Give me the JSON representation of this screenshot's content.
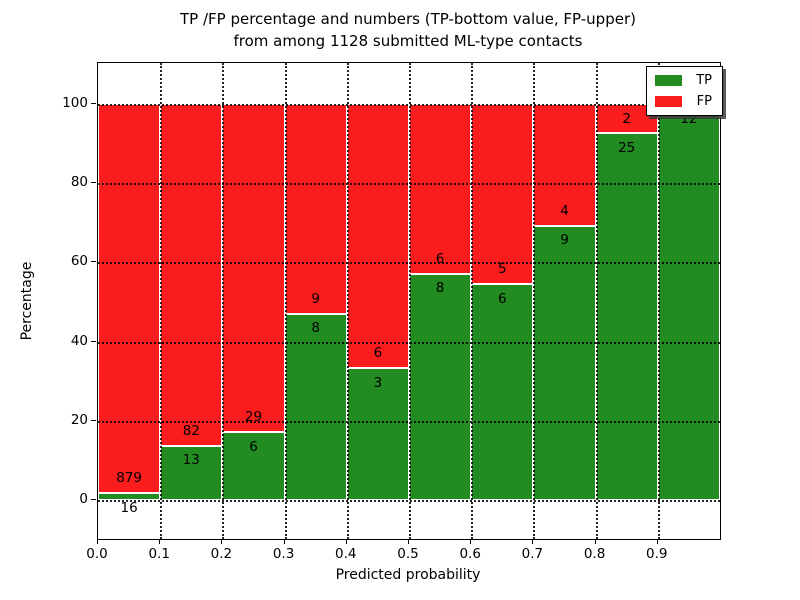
{
  "title": {
    "line1": "TP /FP percentage and numbers (TP-bottom value, FP-upper)",
    "line2": "from among 1128 submitted ML-type contacts"
  },
  "axes": {
    "xlabel": "Predicted probability",
    "ylabel": "Percentage",
    "xtick_labels": [
      "0.0",
      "0.1",
      "0.2",
      "0.3",
      "0.4",
      "0.5",
      "0.6",
      "0.7",
      "0.8",
      "0.9"
    ],
    "ytick_labels": [
      "0",
      "20",
      "40",
      "60",
      "80",
      "100"
    ],
    "ytick_values": [
      0,
      20,
      40,
      60,
      80,
      100
    ]
  },
  "legend": {
    "items": [
      {
        "label": "TP",
        "color": "#228b22"
      },
      {
        "label": "FP",
        "color": "#fb1d1d"
      }
    ]
  },
  "colors": {
    "tp": "#228b22",
    "fp": "#fb1d1d",
    "bar_edge": "#ffffff",
    "grid": "#000000",
    "background": "#ffffff"
  },
  "chart_data": {
    "type": "bar",
    "stacked": true,
    "normalized_to": 100,
    "title": "TP /FP percentage and numbers (TP-bottom value, FP-upper) from among 1128 submitted ML-type contacts",
    "xlabel": "Predicted probability",
    "ylabel": "Percentage",
    "total_contacts": 1128,
    "categories": [
      "0.0-0.1",
      "0.1-0.2",
      "0.2-0.3",
      "0.3-0.4",
      "0.4-0.5",
      "0.5-0.6",
      "0.6-0.7",
      "0.7-0.8",
      "0.8-0.9",
      "0.9-1.0"
    ],
    "bin_start": [
      0.0,
      0.1,
      0.2,
      0.3,
      0.4,
      0.5,
      0.6,
      0.7,
      0.8,
      0.9
    ],
    "bin_width": 0.1,
    "series": [
      {
        "name": "TP",
        "color": "#228b22",
        "counts": [
          16,
          13,
          6,
          8,
          3,
          8,
          6,
          9,
          25,
          12
        ]
      },
      {
        "name": "FP",
        "color": "#fb1d1d",
        "counts": [
          879,
          82,
          29,
          9,
          6,
          6,
          5,
          4,
          2,
          0
        ]
      }
    ],
    "tp_percent": [
      1.79,
      13.68,
      17.14,
      47.06,
      33.33,
      57.14,
      54.55,
      69.23,
      92.59,
      100.0
    ],
    "fp_percent": [
      98.21,
      86.32,
      82.86,
      52.94,
      66.67,
      42.86,
      45.45,
      30.77,
      7.41,
      0.0
    ],
    "tp_labels_shown": [
      "16",
      "13",
      "6",
      "8",
      "3",
      "8",
      "6",
      "9",
      "25",
      "12"
    ],
    "fp_labels_shown": [
      "879",
      "82",
      "29",
      "9",
      "6",
      "6",
      "5",
      "4",
      "2",
      ""
    ],
    "xlim": [
      0.0,
      1.0
    ],
    "ylim": [
      -10,
      110
    ],
    "grid": "dotted",
    "legend_position": "upper right"
  }
}
